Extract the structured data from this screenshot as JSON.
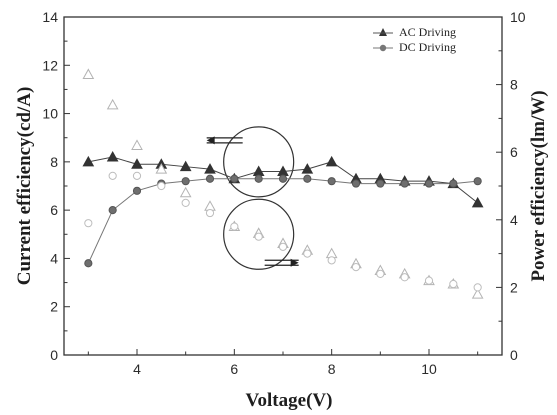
{
  "chart_data": {
    "type": "line",
    "title": "",
    "xlabel": "Voltage(V)",
    "ylabel_left": "Current efficiency(cd/A)",
    "ylabel_right": "Power efficiency(lm/W)",
    "xlim": [
      2.5,
      11.5
    ],
    "ylim_left": [
      0,
      14
    ],
    "ylim_right": [
      0,
      10
    ],
    "x_ticks": [
      4,
      6,
      8,
      10
    ],
    "y_ticks_left": [
      0,
      2,
      4,
      6,
      8,
      10,
      12,
      14
    ],
    "y_ticks_right": [
      0,
      2,
      4,
      6,
      8,
      10
    ],
    "grid": false,
    "legend_position": "top-right",
    "legend": [
      "AC Driving",
      "DC Driving"
    ],
    "series": [
      {
        "name": "AC Driving",
        "axis": "left",
        "marker": "filled-triangle",
        "x": [
          3,
          3.5,
          4,
          4.5,
          5,
          5.5,
          6,
          6.5,
          7,
          7.5,
          8,
          8.5,
          9,
          9.5,
          10,
          10.5,
          11
        ],
        "values": [
          8.0,
          8.2,
          7.9,
          7.9,
          7.8,
          7.7,
          7.3,
          7.6,
          7.6,
          7.7,
          8.0,
          7.3,
          7.3,
          7.2,
          7.2,
          7.1,
          6.3
        ]
      },
      {
        "name": "DC Driving",
        "axis": "left",
        "marker": "filled-circle",
        "x": [
          3,
          3.5,
          4,
          4.5,
          5,
          5.5,
          6,
          6.5,
          7,
          7.5,
          8,
          8.5,
          9,
          9.5,
          10,
          10.5,
          11
        ],
        "values": [
          3.8,
          6.0,
          6.8,
          7.1,
          7.2,
          7.3,
          7.3,
          7.3,
          7.3,
          7.3,
          7.2,
          7.1,
          7.1,
          7.1,
          7.1,
          7.1,
          7.2
        ]
      },
      {
        "axis": "right",
        "marker": "open-triangle",
        "x": [
          3,
          3.5,
          4,
          4.5,
          5,
          5.5,
          6,
          6.5,
          7,
          7.5,
          8,
          8.5,
          9,
          9.5,
          10,
          10.5,
          11
        ],
        "values": [
          8.3,
          7.4,
          6.2,
          5.5,
          4.8,
          4.4,
          3.8,
          3.6,
          3.3,
          3.1,
          3.0,
          2.7,
          2.5,
          2.4,
          2.2,
          2.1,
          1.8
        ]
      },
      {
        "axis": "right",
        "marker": "open-circle",
        "x": [
          3,
          3.5,
          4,
          4.5,
          5,
          5.5,
          6,
          6.5,
          7,
          7.5,
          8,
          8.5,
          9,
          9.5,
          10,
          10.5,
          11
        ],
        "values": [
          3.9,
          5.3,
          5.3,
          5.0,
          4.5,
          4.2,
          3.8,
          3.5,
          3.2,
          3.0,
          2.8,
          2.6,
          2.4,
          2.3,
          2.2,
          2.1,
          2.0
        ]
      }
    ],
    "annotations": [
      {
        "type": "circle",
        "cx": 6.5,
        "cy_left": 8.0,
        "target_axis": "left",
        "arrow": "left"
      },
      {
        "type": "circle",
        "cx": 6.5,
        "cy_left": 5.0,
        "target_axis": "right",
        "arrow": "right"
      }
    ]
  }
}
